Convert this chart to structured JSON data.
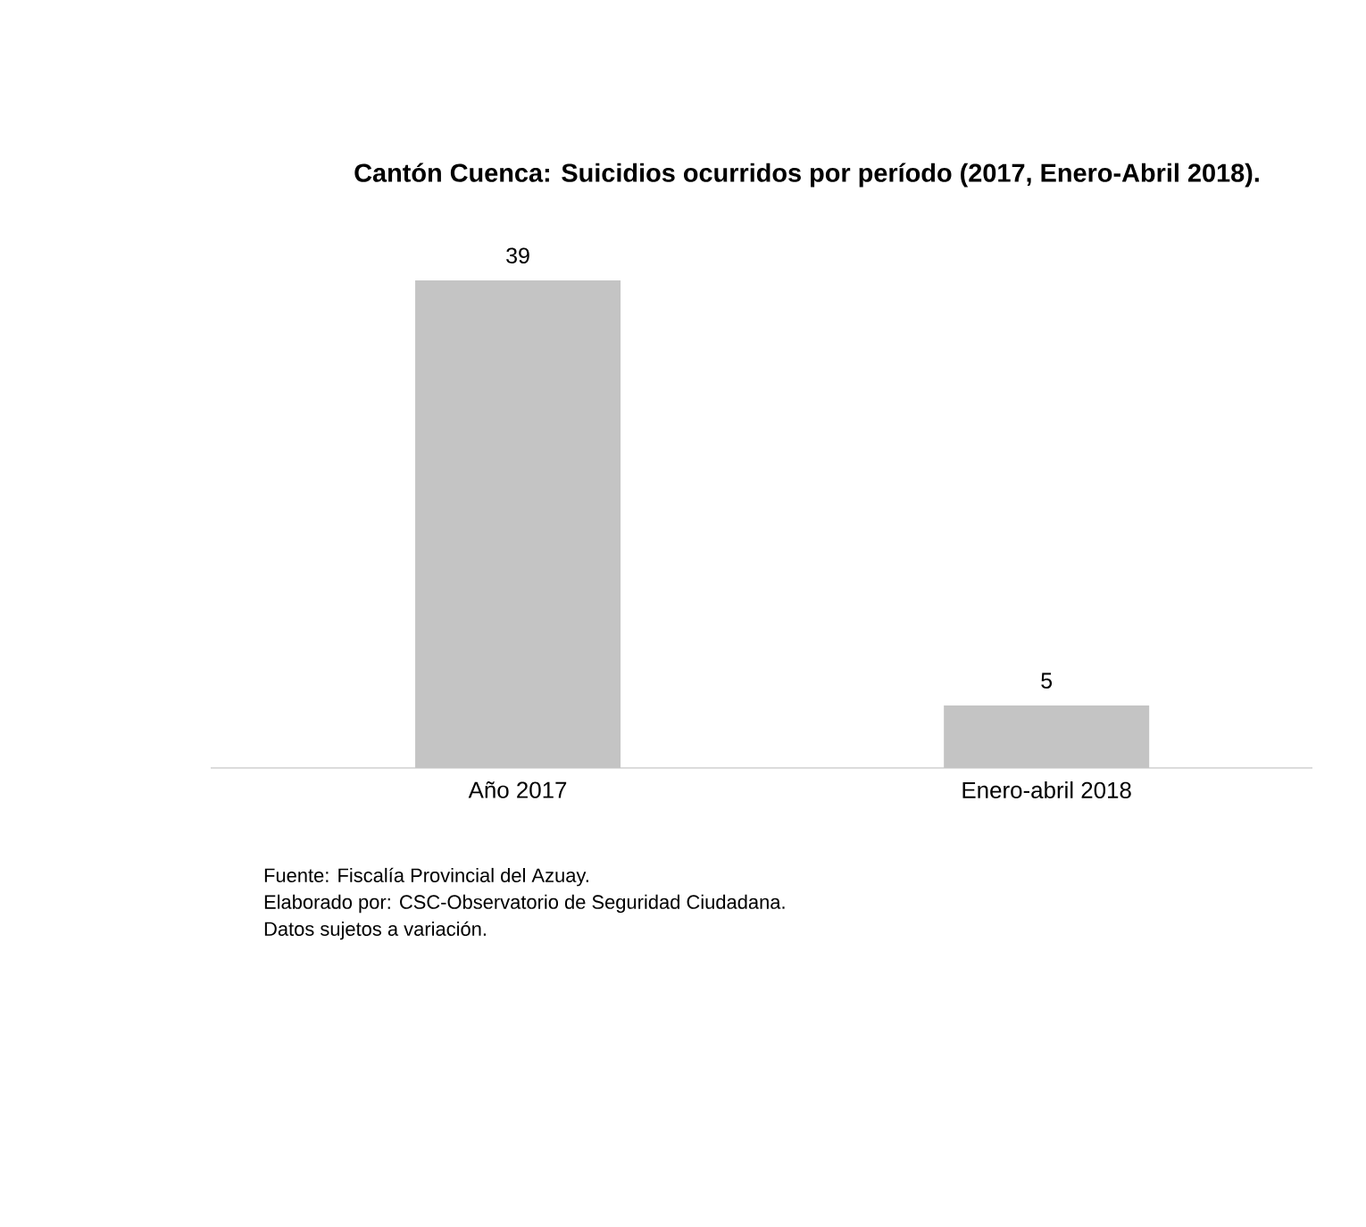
{
  "chart_data": {
    "type": "bar",
    "title": "Cantón Cuenca: Suicidios ocurridos por período (2017, Enero-Abril 2018).",
    "categories": [
      "Año 2017",
      "Enero-abril 2018"
    ],
    "values": [
      39,
      5
    ],
    "color": "#c4c4c4",
    "data_labels": true,
    "annotations": [
      "Fuente: Fiscalía Provincial del Azuay.",
      "Elaborado por: CSC-Observatorio de Seguridad Ciudadana.",
      "Datos sujetos a variación."
    ]
  }
}
